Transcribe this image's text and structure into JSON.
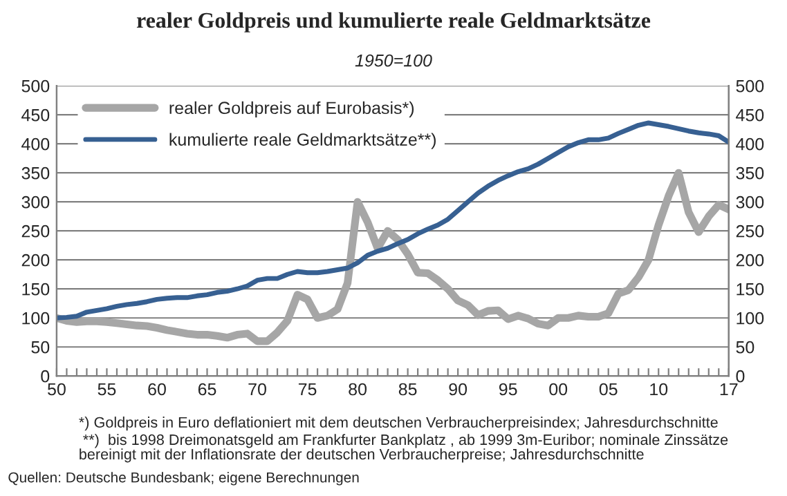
{
  "chart_data": {
    "type": "line",
    "title": "realer Goldpreis und kumulierte reale Geldmarktsätze",
    "subtitle": "1950=100",
    "x": [
      1950,
      1951,
      1952,
      1953,
      1954,
      1955,
      1956,
      1957,
      1958,
      1959,
      1960,
      1961,
      1962,
      1963,
      1964,
      1965,
      1966,
      1967,
      1968,
      1969,
      1970,
      1971,
      1972,
      1973,
      1974,
      1975,
      1976,
      1977,
      1978,
      1979,
      1980,
      1981,
      1982,
      1983,
      1984,
      1985,
      1986,
      1987,
      1988,
      1989,
      1990,
      1991,
      1992,
      1993,
      1994,
      1995,
      1996,
      1997,
      1998,
      1999,
      2000,
      2001,
      2002,
      2003,
      2004,
      2005,
      2006,
      2007,
      2008,
      2009,
      2010,
      2011,
      2012,
      2013,
      2014,
      2015,
      2016,
      2017
    ],
    "series": [
      {
        "name": "realer Goldpreis auf Eurobasis*)",
        "color": "#a6a6a6",
        "values": [
          100,
          95,
          93,
          94,
          94,
          93,
          91,
          89,
          87,
          86,
          83,
          79,
          76,
          73,
          71,
          71,
          69,
          66,
          71,
          73,
          60,
          60,
          75,
          95,
          140,
          132,
          100,
          104,
          115,
          160,
          300,
          265,
          220,
          250,
          235,
          210,
          178,
          177,
          165,
          150,
          130,
          122,
          105,
          112,
          113,
          98,
          104,
          99,
          90,
          87,
          100,
          100,
          104,
          102,
          102,
          108,
          142,
          148,
          170,
          200,
          260,
          310,
          350,
          282,
          248,
          275,
          295,
          287
        ]
      },
      {
        "name": "kumulierte reale Geldmarktsätze**)",
        "color": "#376092",
        "values": [
          100,
          101,
          103,
          110,
          113,
          116,
          120,
          123,
          125,
          128,
          132,
          134,
          135,
          135,
          138,
          140,
          144,
          146,
          150,
          155,
          165,
          168,
          168,
          175,
          180,
          178,
          178,
          180,
          183,
          186,
          195,
          208,
          215,
          220,
          228,
          235,
          245,
          253,
          260,
          270,
          285,
          300,
          315,
          327,
          337,
          345,
          352,
          357,
          365,
          375,
          385,
          395,
          402,
          407,
          407,
          410,
          418,
          425,
          432,
          436,
          433,
          430,
          426,
          422,
          419,
          417,
          414,
          403
        ]
      }
    ],
    "xlim": [
      1950,
      2017
    ],
    "xticks": [
      {
        "value": 1950,
        "label": "50"
      },
      {
        "value": 1951,
        "label": null
      },
      {
        "value": 1952,
        "label": null
      },
      {
        "value": 1953,
        "label": null
      },
      {
        "value": 1954,
        "label": null
      },
      {
        "value": 1955,
        "label": "55"
      },
      {
        "value": 1956,
        "label": null
      },
      {
        "value": 1957,
        "label": null
      },
      {
        "value": 1958,
        "label": null
      },
      {
        "value": 1959,
        "label": null
      },
      {
        "value": 1960,
        "label": "60"
      },
      {
        "value": 1961,
        "label": null
      },
      {
        "value": 1962,
        "label": null
      },
      {
        "value": 1963,
        "label": null
      },
      {
        "value": 1964,
        "label": null
      },
      {
        "value": 1965,
        "label": "65"
      },
      {
        "value": 1966,
        "label": null
      },
      {
        "value": 1967,
        "label": null
      },
      {
        "value": 1968,
        "label": null
      },
      {
        "value": 1969,
        "label": null
      },
      {
        "value": 1970,
        "label": "70"
      },
      {
        "value": 1971,
        "label": null
      },
      {
        "value": 1972,
        "label": null
      },
      {
        "value": 1973,
        "label": null
      },
      {
        "value": 1974,
        "label": null
      },
      {
        "value": 1975,
        "label": "75"
      },
      {
        "value": 1976,
        "label": null
      },
      {
        "value": 1977,
        "label": null
      },
      {
        "value": 1978,
        "label": null
      },
      {
        "value": 1979,
        "label": null
      },
      {
        "value": 1980,
        "label": "80"
      },
      {
        "value": 1981,
        "label": null
      },
      {
        "value": 1982,
        "label": null
      },
      {
        "value": 1983,
        "label": null
      },
      {
        "value": 1984,
        "label": null
      },
      {
        "value": 1985,
        "label": "85"
      },
      {
        "value": 1986,
        "label": null
      },
      {
        "value": 1987,
        "label": null
      },
      {
        "value": 1988,
        "label": null
      },
      {
        "value": 1989,
        "label": null
      },
      {
        "value": 1990,
        "label": "90"
      },
      {
        "value": 1991,
        "label": null
      },
      {
        "value": 1992,
        "label": null
      },
      {
        "value": 1993,
        "label": null
      },
      {
        "value": 1994,
        "label": null
      },
      {
        "value": 1995,
        "label": "95"
      },
      {
        "value": 1996,
        "label": null
      },
      {
        "value": 1997,
        "label": null
      },
      {
        "value": 1998,
        "label": null
      },
      {
        "value": 1999,
        "label": null
      },
      {
        "value": 2000,
        "label": "00"
      },
      {
        "value": 2001,
        "label": null
      },
      {
        "value": 2002,
        "label": null
      },
      {
        "value": 2003,
        "label": null
      },
      {
        "value": 2004,
        "label": null
      },
      {
        "value": 2005,
        "label": "05"
      },
      {
        "value": 2006,
        "label": null
      },
      {
        "value": 2007,
        "label": null
      },
      {
        "value": 2008,
        "label": null
      },
      {
        "value": 2009,
        "label": null
      },
      {
        "value": 2010,
        "label": "10"
      },
      {
        "value": 2011,
        "label": null
      },
      {
        "value": 2012,
        "label": null
      },
      {
        "value": 2013,
        "label": null
      },
      {
        "value": 2014,
        "label": null
      },
      {
        "value": 2015,
        "label": null
      },
      {
        "value": 2016,
        "label": null
      },
      {
        "value": 2017,
        "label": "17"
      }
    ],
    "ylim": [
      0,
      500
    ],
    "yticks": [
      0,
      50,
      100,
      150,
      200,
      250,
      300,
      350,
      400,
      450,
      500
    ],
    "y2lim": [
      0,
      500
    ],
    "y2ticks": [
      0,
      50,
      100,
      150,
      200,
      250,
      300,
      350,
      400,
      450,
      500
    ],
    "grid": "y",
    "legend": "top left",
    "line_style": "solid",
    "marker": "none",
    "annotations": [
      "*) Goldpreis in Euro deflationiert mit dem deutschen Verbraucherpreisindex; Jahresdurchschnitte",
      " **)  bis 1998 Dreimonatsgeld am Frankfurter Bankplatz , ab 1999 3m-Euribor; nominale Zinssätze\nbereinigt mit der Inflationsrate der deutschen Verbraucherpreise; Jahresdurchschnitte",
      "Quellen: Deutsche Bundesbank; eigene Berechnungen"
    ]
  }
}
